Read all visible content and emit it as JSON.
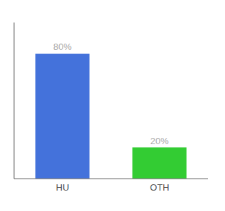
{
  "chart_data": {
    "type": "bar",
    "categories": [
      "HU",
      "OTH"
    ],
    "values": [
      80,
      20
    ],
    "value_labels": [
      "80%",
      "20%"
    ],
    "colors": [
      "#4472db",
      "#33cc33"
    ],
    "ylim": [
      0,
      100
    ],
    "data_labels": true,
    "tick_labels": "x",
    "grid": false
  }
}
